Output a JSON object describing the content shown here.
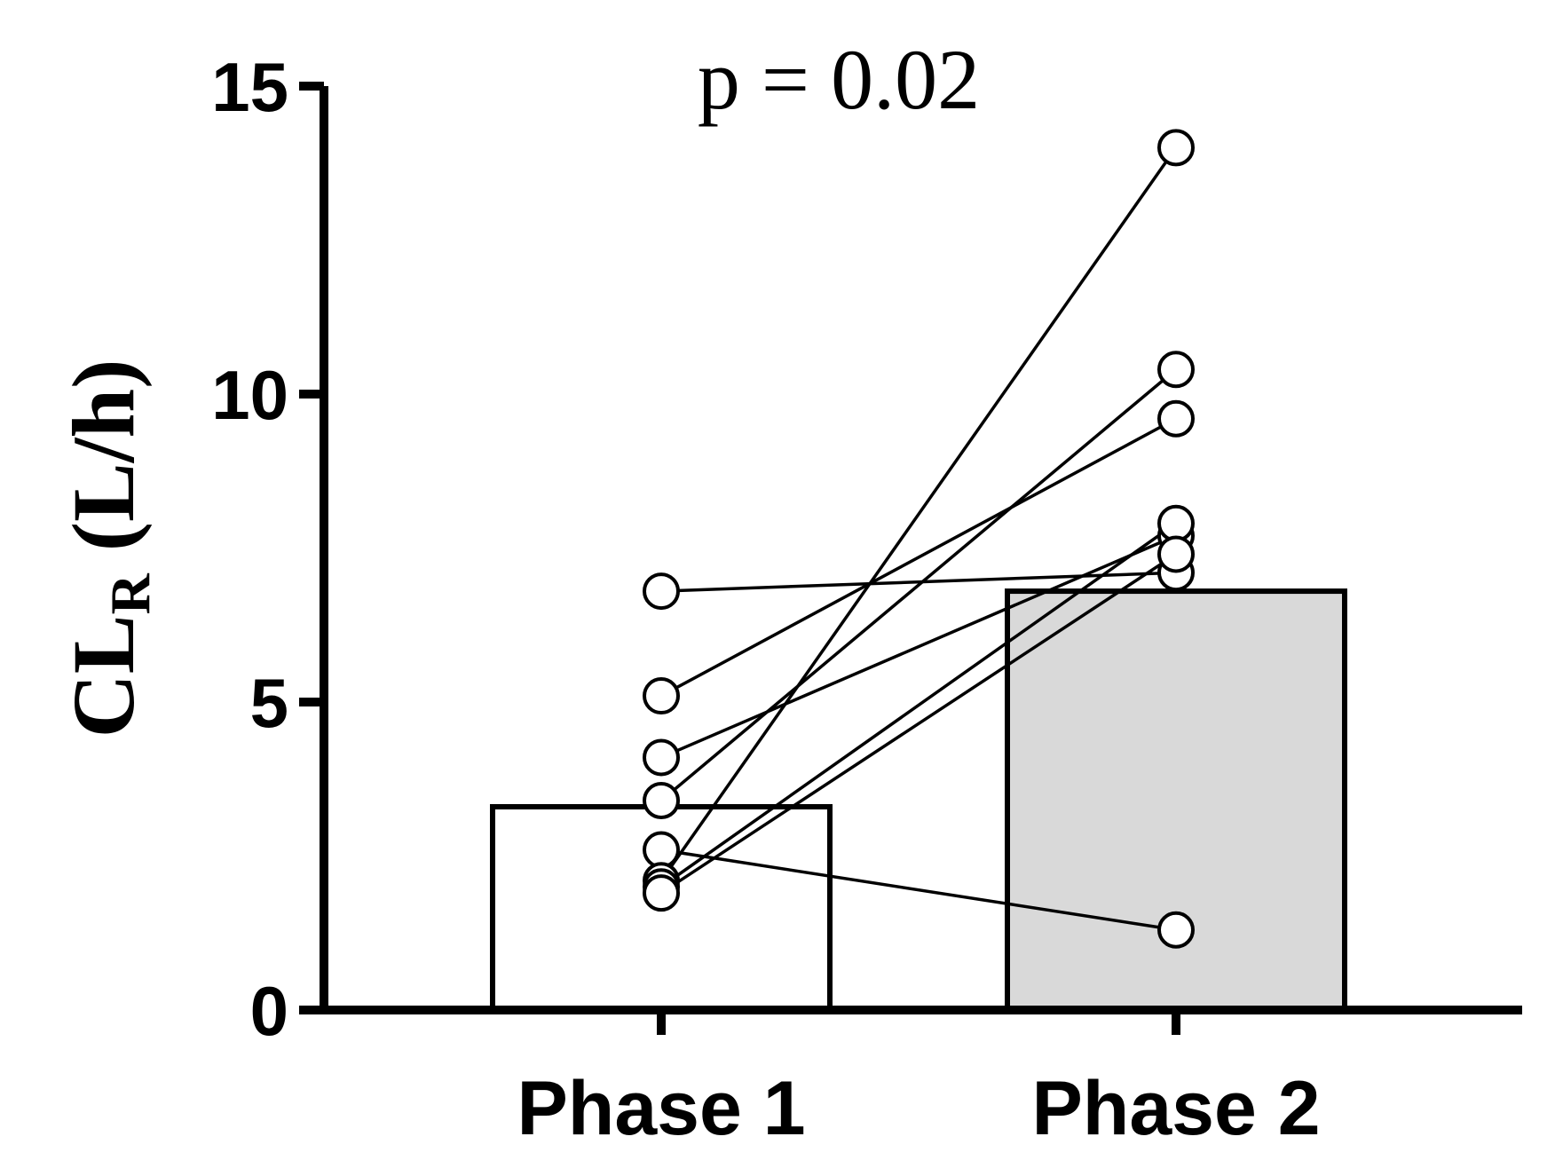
{
  "chart_data": {
    "type": "bar",
    "categories": [
      "Phase 1",
      "Phase 2"
    ],
    "bar_values": [
      3.3,
      6.8
    ],
    "bar_colors": [
      "#ffffff",
      "#d9d9d9"
    ],
    "ylabel": {
      "main": "CL",
      "sub": "R",
      "unit": " (L/h)"
    },
    "ylim": [
      0,
      15
    ],
    "yticks": [
      "0",
      "5",
      "10",
      "15"
    ],
    "annotation": "p = 0.02",
    "paired_points": [
      {
        "phase1": 6.8,
        "phase2": 7.1
      },
      {
        "phase1": 5.1,
        "phase2": 9.6
      },
      {
        "phase1": 4.1,
        "phase2": 7.7
      },
      {
        "phase1": 3.4,
        "phase2": 10.4
      },
      {
        "phase1": 2.6,
        "phase2": 1.3
      },
      {
        "phase1": 2.1,
        "phase2": 14.0
      },
      {
        "phase1": 2.0,
        "phase2": 7.9
      },
      {
        "phase1": 1.9,
        "phase2": 7.4
      }
    ],
    "grid": false,
    "legend": "none"
  }
}
